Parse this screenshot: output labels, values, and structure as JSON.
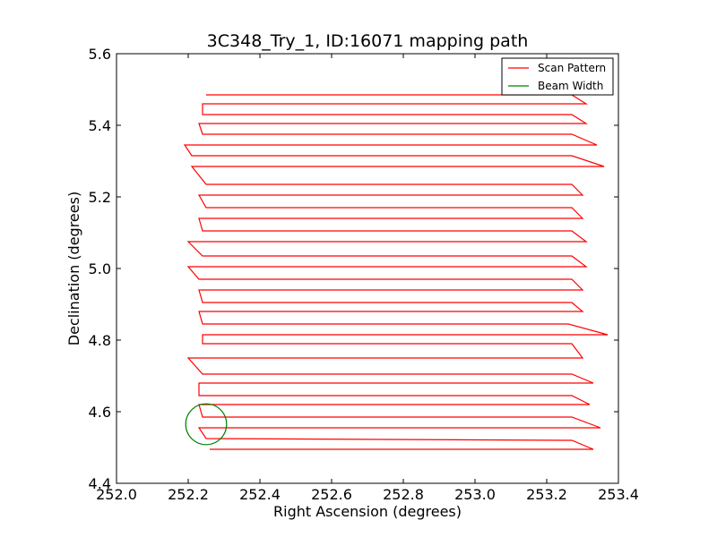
{
  "chart_data": {
    "type": "line",
    "title": "3C348_Try_1, ID:16071 mapping path",
    "xlabel": "Right Ascension (degrees)",
    "ylabel": "Declination (degrees)",
    "xlim": [
      252.0,
      253.4
    ],
    "ylim": [
      4.4,
      5.6
    ],
    "xticks": [
      "252.0",
      "252.2",
      "252.4",
      "252.6",
      "252.8",
      "253.0",
      "253.2",
      "253.4"
    ],
    "yticks": [
      "4.4",
      "4.6",
      "4.8",
      "5.0",
      "5.2",
      "5.4",
      "5.6"
    ],
    "grid": false,
    "legend_position": "top-right",
    "series": [
      {
        "name": "Scan Pattern",
        "color": "#ff0000",
        "x": [
          252.26,
          253.33,
          253.27,
          252.25,
          252.23,
          253.35,
          253.27,
          252.24,
          252.23,
          253.32,
          253.27,
          252.23,
          252.23,
          253.33,
          253.27,
          252.24,
          252.2,
          253.3,
          253.27,
          252.24,
          252.24,
          253.37,
          253.26,
          252.24,
          252.23,
          253.3,
          253.27,
          252.24,
          252.23,
          253.3,
          253.27,
          252.23,
          252.2,
          253.31,
          253.27,
          252.24,
          252.2,
          253.31,
          253.27,
          252.24,
          252.23,
          253.3,
          253.27,
          252.25,
          252.23,
          253.3,
          253.27,
          252.25,
          252.21,
          253.36,
          253.27,
          252.21,
          252.19,
          253.34,
          253.27,
          252.24,
          252.23,
          253.31,
          253.27,
          252.24,
          252.24,
          253.31,
          253.27,
          252.25
        ],
        "y": [
          4.495,
          4.495,
          4.52,
          4.525,
          4.555,
          4.555,
          4.585,
          4.585,
          4.62,
          4.62,
          4.645,
          4.645,
          4.68,
          4.68,
          4.705,
          4.705,
          4.75,
          4.75,
          4.79,
          4.79,
          4.815,
          4.815,
          4.845,
          4.845,
          4.88,
          4.88,
          4.905,
          4.905,
          4.94,
          4.94,
          4.97,
          4.97,
          5.005,
          5.005,
          5.035,
          5.035,
          5.075,
          5.075,
          5.105,
          5.105,
          5.14,
          5.14,
          5.17,
          5.17,
          5.205,
          5.205,
          5.235,
          5.235,
          5.285,
          5.285,
          5.315,
          5.315,
          5.345,
          5.345,
          5.375,
          5.375,
          5.405,
          5.405,
          5.43,
          5.43,
          5.46,
          5.46,
          5.485,
          5.485
        ]
      },
      {
        "name": "Beam Width",
        "color": "#008000",
        "center": [
          252.25,
          4.565
        ],
        "radius": 0.057
      }
    ]
  }
}
